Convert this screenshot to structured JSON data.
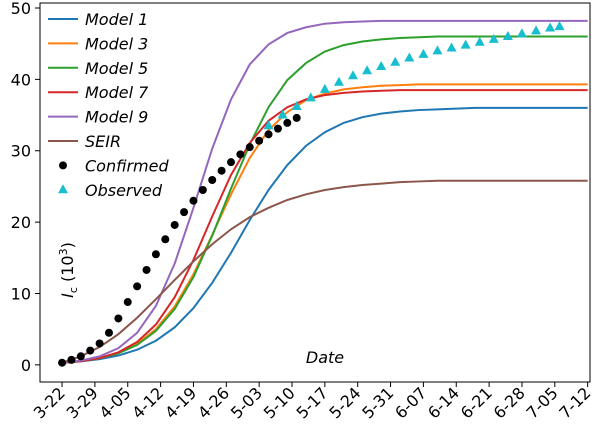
{
  "chart_data": {
    "type": "line",
    "xlabel": "Date",
    "ylabel": [
      "I",
      "c",
      " (10",
      "3",
      ")"
    ],
    "x": [
      0,
      4,
      8,
      12,
      16,
      20,
      24,
      28,
      32,
      36,
      40,
      44,
      48,
      52,
      56,
      60,
      64,
      68,
      72,
      76,
      80,
      84,
      88,
      92,
      96,
      100,
      104,
      108,
      112
    ],
    "xlim": [
      -4.7,
      112.5
    ],
    "ylim": [
      -2.4,
      50.7
    ],
    "xticks": [
      {
        "value": 0,
        "label": "3-22"
      },
      {
        "value": 7,
        "label": "3-29"
      },
      {
        "value": 14,
        "label": "4-05"
      },
      {
        "value": 21,
        "label": "4-12"
      },
      {
        "value": 28,
        "label": "4-19"
      },
      {
        "value": 35,
        "label": "4-26"
      },
      {
        "value": 42,
        "label": "5-03"
      },
      {
        "value": 49,
        "label": "5-10"
      },
      {
        "value": 56,
        "label": "5-17"
      },
      {
        "value": 63,
        "label": "5-24"
      },
      {
        "value": 70,
        "label": "5-31"
      },
      {
        "value": 77,
        "label": "6-07"
      },
      {
        "value": 84,
        "label": "6-14"
      },
      {
        "value": 91,
        "label": "6-21"
      },
      {
        "value": 98,
        "label": "6-28"
      },
      {
        "value": 105,
        "label": "7-05"
      },
      {
        "value": 112,
        "label": "7-12"
      }
    ],
    "yticks": [
      0,
      10,
      20,
      30,
      40,
      50
    ],
    "grid": false,
    "legend": "upper left",
    "series": [
      {
        "name": "Model 1",
        "color": "#1f77b4",
        "values": [
          0.3,
          0.49,
          0.8,
          1.31,
          2.12,
          3.38,
          5.26,
          7.95,
          11.5,
          15.7,
          20.3,
          24.5,
          28.0,
          30.7,
          32.6,
          33.9,
          34.7,
          35.2,
          35.5,
          35.7,
          35.8,
          35.9,
          36.0,
          36.0,
          36.0,
          36.0,
          36.0,
          36.0,
          36.0
        ]
      },
      {
        "name": "Model 3",
        "color": "#ff7f0e",
        "values": [
          0.3,
          0.53,
          0.95,
          1.68,
          2.93,
          5.01,
          8.2,
          12.7,
          18.2,
          23.9,
          29.0,
          32.9,
          35.4,
          37.1,
          38.0,
          38.6,
          38.9,
          39.1,
          39.2,
          39.3,
          39.3,
          39.3,
          39.3,
          39.3,
          39.3,
          39.3,
          39.3,
          39.3,
          39.3
        ]
      },
      {
        "name": "Model 5",
        "color": "#2ca02c",
        "values": [
          0.3,
          0.52,
          0.92,
          1.62,
          2.8,
          4.76,
          7.83,
          12.3,
          18.1,
          24.7,
          30.9,
          36.1,
          39.9,
          42.3,
          43.9,
          44.8,
          45.3,
          45.6,
          45.8,
          45.9,
          46.0,
          46.0,
          46.0,
          46.0,
          46.0,
          46.0,
          46.0,
          46.0,
          46.0
        ]
      },
      {
        "name": "Model 7",
        "color": "#d62728",
        "values": [
          0.27,
          0.51,
          0.95,
          1.76,
          3.21,
          5.65,
          9.48,
          14.7,
          20.8,
          26.6,
          31.1,
          34.2,
          36.1,
          37.2,
          37.8,
          38.1,
          38.3,
          38.4,
          38.5,
          38.5,
          38.5,
          38.5,
          38.5,
          38.5,
          38.5,
          38.5,
          38.5,
          38.5,
          38.5
        ]
      },
      {
        "name": "Model 9",
        "color": "#9467bd",
        "values": [
          0.3,
          0.6,
          1.19,
          2.34,
          4.49,
          8.27,
          14.2,
          22.0,
          30.3,
          37.2,
          42.1,
          44.9,
          46.5,
          47.3,
          47.8,
          48.0,
          48.1,
          48.2,
          48.2,
          48.2,
          48.2,
          48.2,
          48.2,
          48.2,
          48.2,
          48.2,
          48.2,
          48.2,
          48.2
        ]
      },
      {
        "name": "SEIR",
        "color": "#8c564b",
        "values": [
          0.3,
          1.2,
          2.5,
          4.3,
          6.6,
          9.2,
          11.9,
          14.5,
          16.9,
          19.0,
          20.7,
          22.0,
          23.1,
          23.9,
          24.5,
          24.9,
          25.2,
          25.4,
          25.6,
          25.7,
          25.8,
          25.8,
          25.8,
          25.8,
          25.8,
          25.8,
          25.8,
          25.8,
          25.8
        ]
      },
      {
        "name": "Confirmed",
        "type": "scatter",
        "marker": "circle",
        "color": "#000000",
        "x": [
          0,
          2,
          4,
          6,
          8,
          10,
          12,
          14,
          16,
          18,
          20,
          22,
          24,
          26,
          28,
          30,
          32,
          34,
          36,
          38,
          40,
          42,
          44,
          46,
          48,
          50
        ],
        "values": [
          0.3,
          0.7,
          1.2,
          2.0,
          3.0,
          4.5,
          6.5,
          8.8,
          11.0,
          13.3,
          15.5,
          17.6,
          19.6,
          21.4,
          23.0,
          24.5,
          25.9,
          27.2,
          28.4,
          29.5,
          30.5,
          31.4,
          32.3,
          33.1,
          33.9,
          34.6
        ]
      },
      {
        "name": "Observed",
        "type": "scatter",
        "marker": "triangle",
        "color": "#17becf",
        "x": [
          44,
          47,
          50,
          53,
          56,
          59,
          62,
          65,
          68,
          71,
          74,
          77,
          80,
          83,
          86,
          89,
          92,
          95,
          98,
          101,
          104,
          106
        ],
        "values": [
          33.5,
          35.0,
          36.2,
          37.4,
          38.6,
          39.6,
          40.5,
          41.2,
          41.8,
          42.4,
          43.0,
          43.5,
          44.0,
          44.4,
          44.8,
          45.2,
          45.6,
          46.0,
          46.4,
          46.8,
          47.2,
          47.4
        ]
      }
    ]
  }
}
